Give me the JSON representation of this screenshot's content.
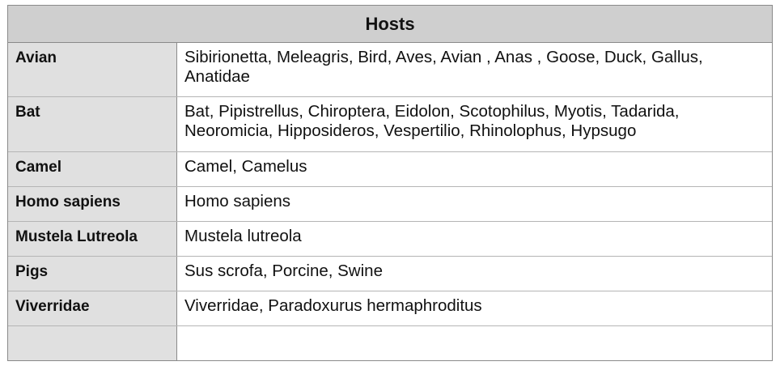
{
  "table": {
    "title": "Hosts",
    "rows": [
      {
        "key": "Avian",
        "value": "Sibirionetta, Meleagris, Bird, Aves, Avian , Anas , Goose, Duck, Gallus, Anatidae"
      },
      {
        "key": "Bat",
        "value": "Bat, Pipistrellus, Chiroptera, Eidolon, Scotophilus, Myotis, Tadarida, Neoromicia, Hipposideros, Vespertilio, Rhinolophus, Hypsugo"
      },
      {
        "key": "Camel",
        "value": "Camel, Camelus"
      },
      {
        "key": "Homo sapiens",
        "value": "Homo sapiens"
      },
      {
        "key": "Mustela Lutreola",
        "value": "Mustela lutreola"
      },
      {
        "key": "Pigs",
        "value": "Sus scrofa, Porcine, Swine"
      },
      {
        "key": "Viverridae",
        "value": "Viverridae, Paradoxurus hermaphroditus"
      },
      {
        "key": "",
        "value": ""
      }
    ]
  }
}
